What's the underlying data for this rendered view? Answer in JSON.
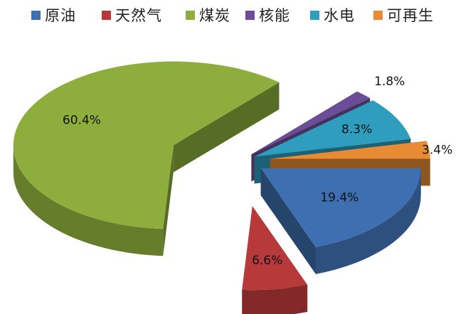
{
  "chart_data": {
    "type": "pie",
    "style": "3d-exploded",
    "title": "",
    "legend_position": "top",
    "categories": [
      "原油",
      "天然气",
      "煤炭",
      "核能",
      "水电",
      "可再生"
    ],
    "values": [
      19.4,
      6.6,
      60.4,
      1.8,
      8.3,
      3.4
    ],
    "data_labels": [
      "19.4%",
      "6.6%",
      "60.4%",
      "1.8%",
      "8.3%",
      "3.4%"
    ],
    "colors": [
      "#3E6FB0",
      "#B8393A",
      "#8DAE3C",
      "#6A4D96",
      "#2E9DBE",
      "#E98B34"
    ]
  }
}
